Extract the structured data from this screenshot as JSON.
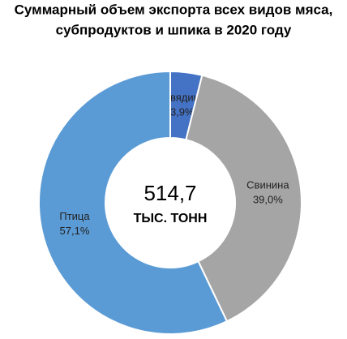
{
  "chart_data": {
    "type": "donut",
    "title": [
      "Суммарный объем экспорта всех видов мяса,",
      "субпродуктов и шпика в 2020 году"
    ],
    "center_value": "514,7",
    "center_unit": "ТЫС. ТОНН",
    "categories": [
      "Говядина",
      "Свинина",
      "Птица"
    ],
    "values": [
      3.9,
      39.0,
      57.1
    ],
    "value_labels": [
      "3,9%",
      "39,0%",
      "57,1%"
    ],
    "colors": [
      "#4472c4",
      "#a5a5a5",
      "#5b9bd5"
    ]
  }
}
